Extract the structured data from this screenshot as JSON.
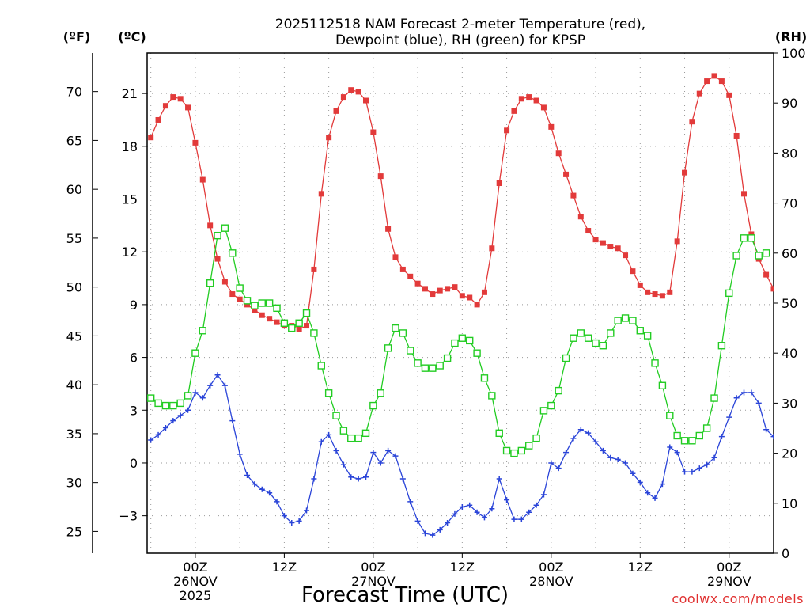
{
  "chart_data": {
    "type": "line",
    "title": {
      "line1": "2025112518 NAM Forecast 2-meter Temperature (red),",
      "line2": "Dewpoint (blue), RH (green) for KPSP"
    },
    "xlabel": "Forecast Time (UTC)",
    "credit": "coolwx.com/models",
    "units": {
      "fahrenheit": "(ºF)",
      "celsius": "(ºC)",
      "rh": "(RH)"
    },
    "x_range_hours": [
      -6.5,
      78
    ],
    "x_ticks": [
      {
        "hour": 0,
        "lines": [
          "00Z",
          "26NOV",
          "2025"
        ]
      },
      {
        "hour": 12,
        "lines": [
          "12Z"
        ]
      },
      {
        "hour": 24,
        "lines": [
          "00Z",
          "27NOV"
        ]
      },
      {
        "hour": 36,
        "lines": [
          "12Z"
        ]
      },
      {
        "hour": 48,
        "lines": [
          "00Z",
          "28NOV"
        ]
      },
      {
        "hour": 60,
        "lines": [
          "12Z"
        ]
      },
      {
        "hour": 72,
        "lines": [
          "00Z",
          "29NOV"
        ]
      }
    ],
    "celsius_axis": {
      "range": [
        -5.13,
        23.3
      ],
      "ticks": [
        -3,
        0,
        3,
        6,
        9,
        12,
        15,
        18,
        21
      ],
      "tick_labels": [
        "−3",
        "0",
        "3",
        "6",
        "9",
        "12",
        "15",
        "18",
        "21"
      ]
    },
    "fahrenheit_axis": {
      "ticks": [
        25,
        30,
        35,
        40,
        45,
        50,
        55,
        60,
        65,
        70
      ],
      "tick_labels": [
        "25",
        "30",
        "35",
        "40",
        "45",
        "50",
        "55",
        "60",
        "65",
        "70"
      ]
    },
    "rh_axis": {
      "range": [
        0,
        100
      ],
      "ticks": [
        0,
        10,
        20,
        30,
        40,
        50,
        60,
        70,
        80,
        90,
        100
      ],
      "tick_labels": [
        "0",
        "10",
        "20",
        "30",
        "40",
        "50",
        "60",
        "70",
        "80",
        "90",
        "100"
      ]
    },
    "series": [
      {
        "name": "Temperature",
        "unit": "C",
        "axis": "celsius",
        "color": "#e23a3a",
        "marker": "filled-square",
        "points": [
          [
            -6,
            18.5
          ],
          [
            -5,
            19.5
          ],
          [
            -4,
            20.3
          ],
          [
            -3,
            20.8
          ],
          [
            -2,
            20.7
          ],
          [
            -1,
            20.2
          ],
          [
            0,
            18.2
          ],
          [
            1,
            16.1
          ],
          [
            2,
            13.5
          ],
          [
            3,
            11.6
          ],
          [
            4,
            10.3
          ],
          [
            5,
            9.6
          ],
          [
            6,
            9.3
          ],
          [
            7,
            9.0
          ],
          [
            8,
            8.7
          ],
          [
            9,
            8.4
          ],
          [
            10,
            8.2
          ],
          [
            11,
            8.0
          ],
          [
            12,
            7.8
          ],
          [
            13,
            7.8
          ],
          [
            14,
            7.6
          ],
          [
            15,
            7.8
          ],
          [
            16,
            11.0
          ],
          [
            17,
            15.3
          ],
          [
            18,
            18.5
          ],
          [
            19,
            20.0
          ],
          [
            20,
            20.8
          ],
          [
            21,
            21.2
          ],
          [
            22,
            21.1
          ],
          [
            23,
            20.6
          ],
          [
            24,
            18.8
          ],
          [
            25,
            16.3
          ],
          [
            26,
            13.3
          ],
          [
            27,
            11.7
          ],
          [
            28,
            11.0
          ],
          [
            29,
            10.6
          ],
          [
            30,
            10.2
          ],
          [
            31,
            9.9
          ],
          [
            32,
            9.6
          ],
          [
            33,
            9.8
          ],
          [
            34,
            9.9
          ],
          [
            35,
            10.0
          ],
          [
            36,
            9.5
          ],
          [
            37,
            9.4
          ],
          [
            38,
            9.0
          ],
          [
            39,
            9.7
          ],
          [
            40,
            12.2
          ],
          [
            41,
            15.9
          ],
          [
            42,
            18.9
          ],
          [
            43,
            20.0
          ],
          [
            44,
            20.7
          ],
          [
            45,
            20.8
          ],
          [
            46,
            20.6
          ],
          [
            47,
            20.2
          ],
          [
            48,
            19.1
          ],
          [
            49,
            17.6
          ],
          [
            50,
            16.4
          ],
          [
            51,
            15.2
          ],
          [
            52,
            14.0
          ],
          [
            53,
            13.2
          ],
          [
            54,
            12.7
          ],
          [
            55,
            12.5
          ],
          [
            56,
            12.3
          ],
          [
            57,
            12.2
          ],
          [
            58,
            11.8
          ],
          [
            59,
            10.9
          ],
          [
            60,
            10.1
          ],
          [
            61,
            9.7
          ],
          [
            62,
            9.6
          ],
          [
            63,
            9.5
          ],
          [
            64,
            9.7
          ],
          [
            65,
            12.6
          ],
          [
            66,
            16.5
          ],
          [
            67,
            19.4
          ],
          [
            68,
            21.0
          ],
          [
            69,
            21.7
          ],
          [
            70,
            22.0
          ],
          [
            71,
            21.7
          ],
          [
            72,
            20.9
          ],
          [
            73,
            18.6
          ],
          [
            74,
            15.3
          ],
          [
            75,
            13.0
          ],
          [
            76,
            11.6
          ],
          [
            77,
            10.7
          ],
          [
            78,
            9.9
          ],
          [
            78.5,
            9.2
          ]
        ]
      },
      {
        "name": "Dewpoint",
        "unit": "C",
        "axis": "celsius",
        "color": "#2a44d8",
        "marker": "plus",
        "points": [
          [
            -6,
            1.3
          ],
          [
            -5,
            1.6
          ],
          [
            -4,
            2.0
          ],
          [
            -3,
            2.4
          ],
          [
            -2,
            2.7
          ],
          [
            -1,
            3.0
          ],
          [
            0,
            4.0
          ],
          [
            1,
            3.7
          ],
          [
            2,
            4.4
          ],
          [
            3,
            5.0
          ],
          [
            4,
            4.4
          ],
          [
            5,
            2.4
          ],
          [
            6,
            0.5
          ],
          [
            7,
            -0.7
          ],
          [
            8,
            -1.2
          ],
          [
            9,
            -1.5
          ],
          [
            10,
            -1.7
          ],
          [
            11,
            -2.2
          ],
          [
            12,
            -3.0
          ],
          [
            13,
            -3.4
          ],
          [
            14,
            -3.3
          ],
          [
            15,
            -2.7
          ],
          [
            16,
            -0.9
          ],
          [
            17,
            1.2
          ],
          [
            18,
            1.6
          ],
          [
            19,
            0.7
          ],
          [
            20,
            -0.1
          ],
          [
            21,
            -0.8
          ],
          [
            22,
            -0.9
          ],
          [
            23,
            -0.8
          ],
          [
            24,
            0.6
          ],
          [
            25,
            0.0
          ],
          [
            26,
            0.7
          ],
          [
            27,
            0.4
          ],
          [
            28,
            -0.9
          ],
          [
            29,
            -2.2
          ],
          [
            30,
            -3.3
          ],
          [
            31,
            -4.0
          ],
          [
            32,
            -4.1
          ],
          [
            33,
            -3.8
          ],
          [
            34,
            -3.4
          ],
          [
            35,
            -2.9
          ],
          [
            36,
            -2.5
          ],
          [
            37,
            -2.4
          ],
          [
            38,
            -2.8
          ],
          [
            39,
            -3.1
          ],
          [
            40,
            -2.6
          ],
          [
            41,
            -0.9
          ],
          [
            42,
            -2.1
          ],
          [
            43,
            -3.2
          ],
          [
            44,
            -3.2
          ],
          [
            45,
            -2.8
          ],
          [
            46,
            -2.4
          ],
          [
            47,
            -1.8
          ],
          [
            48,
            0.0
          ],
          [
            49,
            -0.3
          ],
          [
            50,
            0.6
          ],
          [
            51,
            1.4
          ],
          [
            52,
            1.9
          ],
          [
            53,
            1.7
          ],
          [
            54,
            1.2
          ],
          [
            55,
            0.7
          ],
          [
            56,
            0.3
          ],
          [
            57,
            0.2
          ],
          [
            58,
            0.0
          ],
          [
            59,
            -0.6
          ],
          [
            60,
            -1.1
          ],
          [
            61,
            -1.7
          ],
          [
            62,
            -2.0
          ],
          [
            63,
            -1.2
          ],
          [
            64,
            0.9
          ],
          [
            65,
            0.6
          ],
          [
            66,
            -0.5
          ],
          [
            67,
            -0.5
          ],
          [
            68,
            -0.3
          ],
          [
            69,
            -0.1
          ],
          [
            70,
            0.3
          ],
          [
            71,
            1.5
          ],
          [
            72,
            2.6
          ],
          [
            73,
            3.7
          ],
          [
            74,
            4.0
          ],
          [
            75,
            4.0
          ],
          [
            76,
            3.4
          ],
          [
            77,
            1.9
          ],
          [
            78,
            1.5
          ]
        ]
      },
      {
        "name": "RH",
        "unit": "%",
        "axis": "rh",
        "color": "#22cc22",
        "marker": "open-square",
        "points": [
          [
            -6,
            31
          ],
          [
            -5,
            30
          ],
          [
            -4,
            29.5
          ],
          [
            -3,
            29.5
          ],
          [
            -2,
            30
          ],
          [
            -1,
            31.5
          ],
          [
            0,
            40
          ],
          [
            1,
            44.5
          ],
          [
            2,
            54
          ],
          [
            3,
            63.5
          ],
          [
            4,
            65
          ],
          [
            5,
            60
          ],
          [
            6,
            53
          ],
          [
            7,
            50.5
          ],
          [
            8,
            49.5
          ],
          [
            9,
            50
          ],
          [
            10,
            50
          ],
          [
            11,
            49
          ],
          [
            12,
            46
          ],
          [
            13,
            45
          ],
          [
            14,
            46
          ],
          [
            15,
            48
          ],
          [
            16,
            44
          ],
          [
            17,
            37.5
          ],
          [
            18,
            32
          ],
          [
            19,
            27.5
          ],
          [
            20,
            24.5
          ],
          [
            21,
            23
          ],
          [
            22,
            23
          ],
          [
            23,
            24
          ],
          [
            24,
            29.5
          ],
          [
            25,
            32
          ],
          [
            26,
            41
          ],
          [
            27,
            45
          ],
          [
            28,
            44
          ],
          [
            29,
            40.5
          ],
          [
            30,
            38
          ],
          [
            31,
            37
          ],
          [
            32,
            37
          ],
          [
            33,
            37.5
          ],
          [
            34,
            39
          ],
          [
            35,
            42
          ],
          [
            36,
            43
          ],
          [
            37,
            42.5
          ],
          [
            38,
            40
          ],
          [
            39,
            35
          ],
          [
            40,
            31.5
          ],
          [
            41,
            24
          ],
          [
            42,
            20.5
          ],
          [
            43,
            20
          ],
          [
            44,
            20.5
          ],
          [
            45,
            21.5
          ],
          [
            46,
            23
          ],
          [
            47,
            28.5
          ],
          [
            48,
            29.5
          ],
          [
            49,
            32.5
          ],
          [
            50,
            39
          ],
          [
            51,
            43
          ],
          [
            52,
            44
          ],
          [
            53,
            43
          ],
          [
            54,
            42
          ],
          [
            55,
            41.5
          ],
          [
            56,
            44
          ],
          [
            57,
            46.5
          ],
          [
            58,
            47
          ],
          [
            59,
            46.5
          ],
          [
            60,
            44.5
          ],
          [
            61,
            43.5
          ],
          [
            62,
            38
          ],
          [
            63,
            33.5
          ],
          [
            64,
            27.5
          ],
          [
            65,
            23.5
          ],
          [
            66,
            22.5
          ],
          [
            67,
            22.5
          ],
          [
            68,
            23.5
          ],
          [
            69,
            25
          ],
          [
            70,
            31
          ],
          [
            71,
            41.5
          ],
          [
            72,
            52
          ],
          [
            73,
            59.5
          ],
          [
            74,
            63
          ],
          [
            75,
            63
          ],
          [
            76,
            59.5
          ],
          [
            77,
            60
          ]
        ]
      }
    ]
  }
}
